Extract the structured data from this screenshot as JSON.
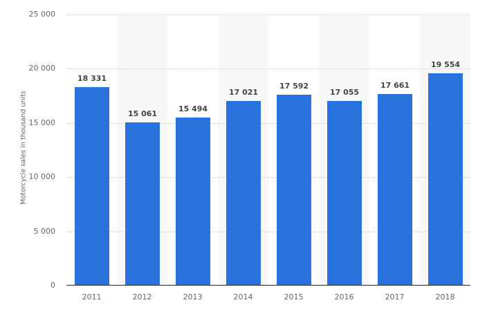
{
  "chart_data": {
    "type": "bar",
    "title": "",
    "xlabel": "",
    "ylabel": "Motorcycle sales in thousand units",
    "categories": [
      "2011",
      "2012",
      "2013",
      "2014",
      "2015",
      "2016",
      "2017",
      "2018"
    ],
    "values": [
      18331,
      15061,
      15494,
      17021,
      17592,
      17055,
      17661,
      19554
    ],
    "value_labels": [
      "18 331",
      "15 061",
      "15 494",
      "17 021",
      "17 592",
      "17 055",
      "17 661",
      "19 554"
    ],
    "ylim": [
      0,
      25000
    ],
    "yticks": [
      0,
      5000,
      10000,
      15000,
      20000,
      25000
    ],
    "ytick_labels": [
      "0",
      "5 000",
      "10 000",
      "15 000",
      "20 000",
      "25 000"
    ],
    "grid": true,
    "legend": null,
    "bar_color": "#2a73dc"
  }
}
